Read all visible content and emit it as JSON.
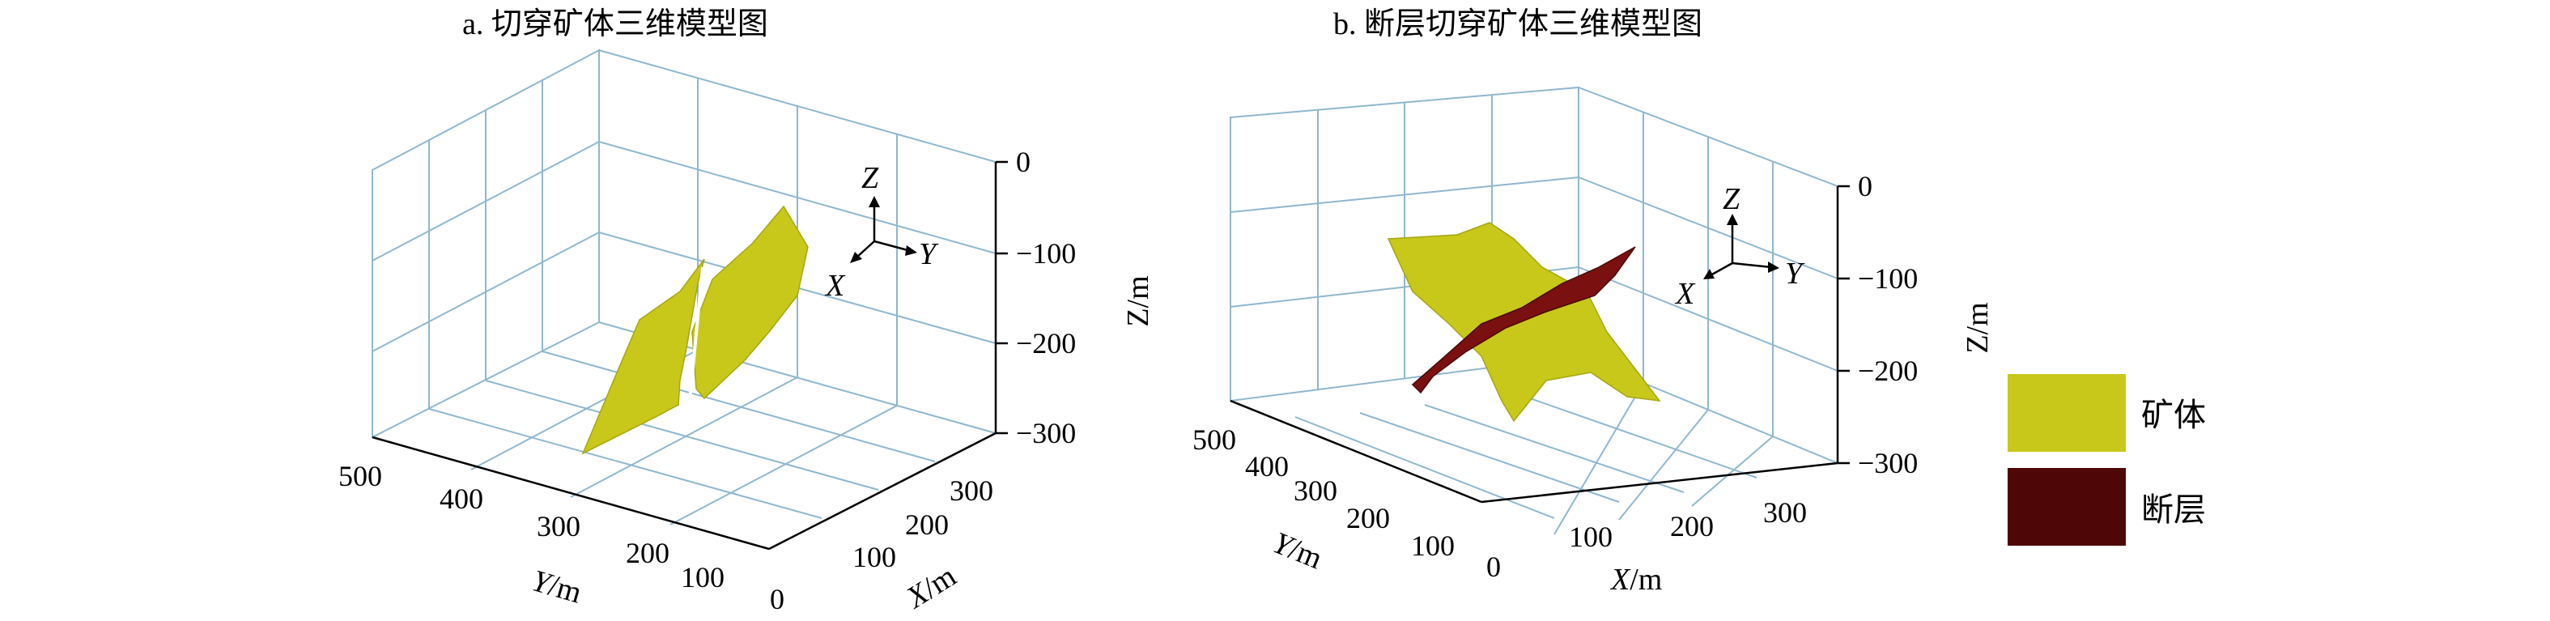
{
  "panel_a": {
    "title": "a. 切穿矿体三维模型图",
    "z_ticks": [
      "0",
      "−100",
      "−200",
      "−300"
    ],
    "y_ticks": [
      "500",
      "400",
      "300",
      "200",
      "100"
    ],
    "x_ticks": [
      "0",
      "100",
      "200",
      "300"
    ],
    "z_label": "Z/m",
    "y_label_var": "Y",
    "y_label_unit": "/m",
    "x_label_var": "X",
    "x_label_unit": "/m",
    "triad": {
      "z": "Z",
      "y": "Y",
      "x": "X"
    }
  },
  "panel_b": {
    "title": "b. 断层切穿矿体三维模型图",
    "z_ticks": [
      "0",
      "−100",
      "−200",
      "−300"
    ],
    "y_ticks": [
      "500",
      "400",
      "300",
      "200",
      "100"
    ],
    "x_ticks": [
      "0",
      "100",
      "200",
      "300"
    ],
    "z_label": "Z/m",
    "y_label_var": "Y",
    "y_label_unit": "/m",
    "x_label_var": "X",
    "x_label_unit": "/m",
    "triad": {
      "z": "Z",
      "y": "Y",
      "x": "X"
    }
  },
  "legend": {
    "items": [
      {
        "label": "矿体",
        "color": "#c8c81a"
      },
      {
        "label": "断层",
        "color": "#5a0a0a"
      }
    ]
  },
  "colors": {
    "orebody": "#c8c81a",
    "fault": "#7a1010",
    "grid": "#8fb7cf"
  }
}
